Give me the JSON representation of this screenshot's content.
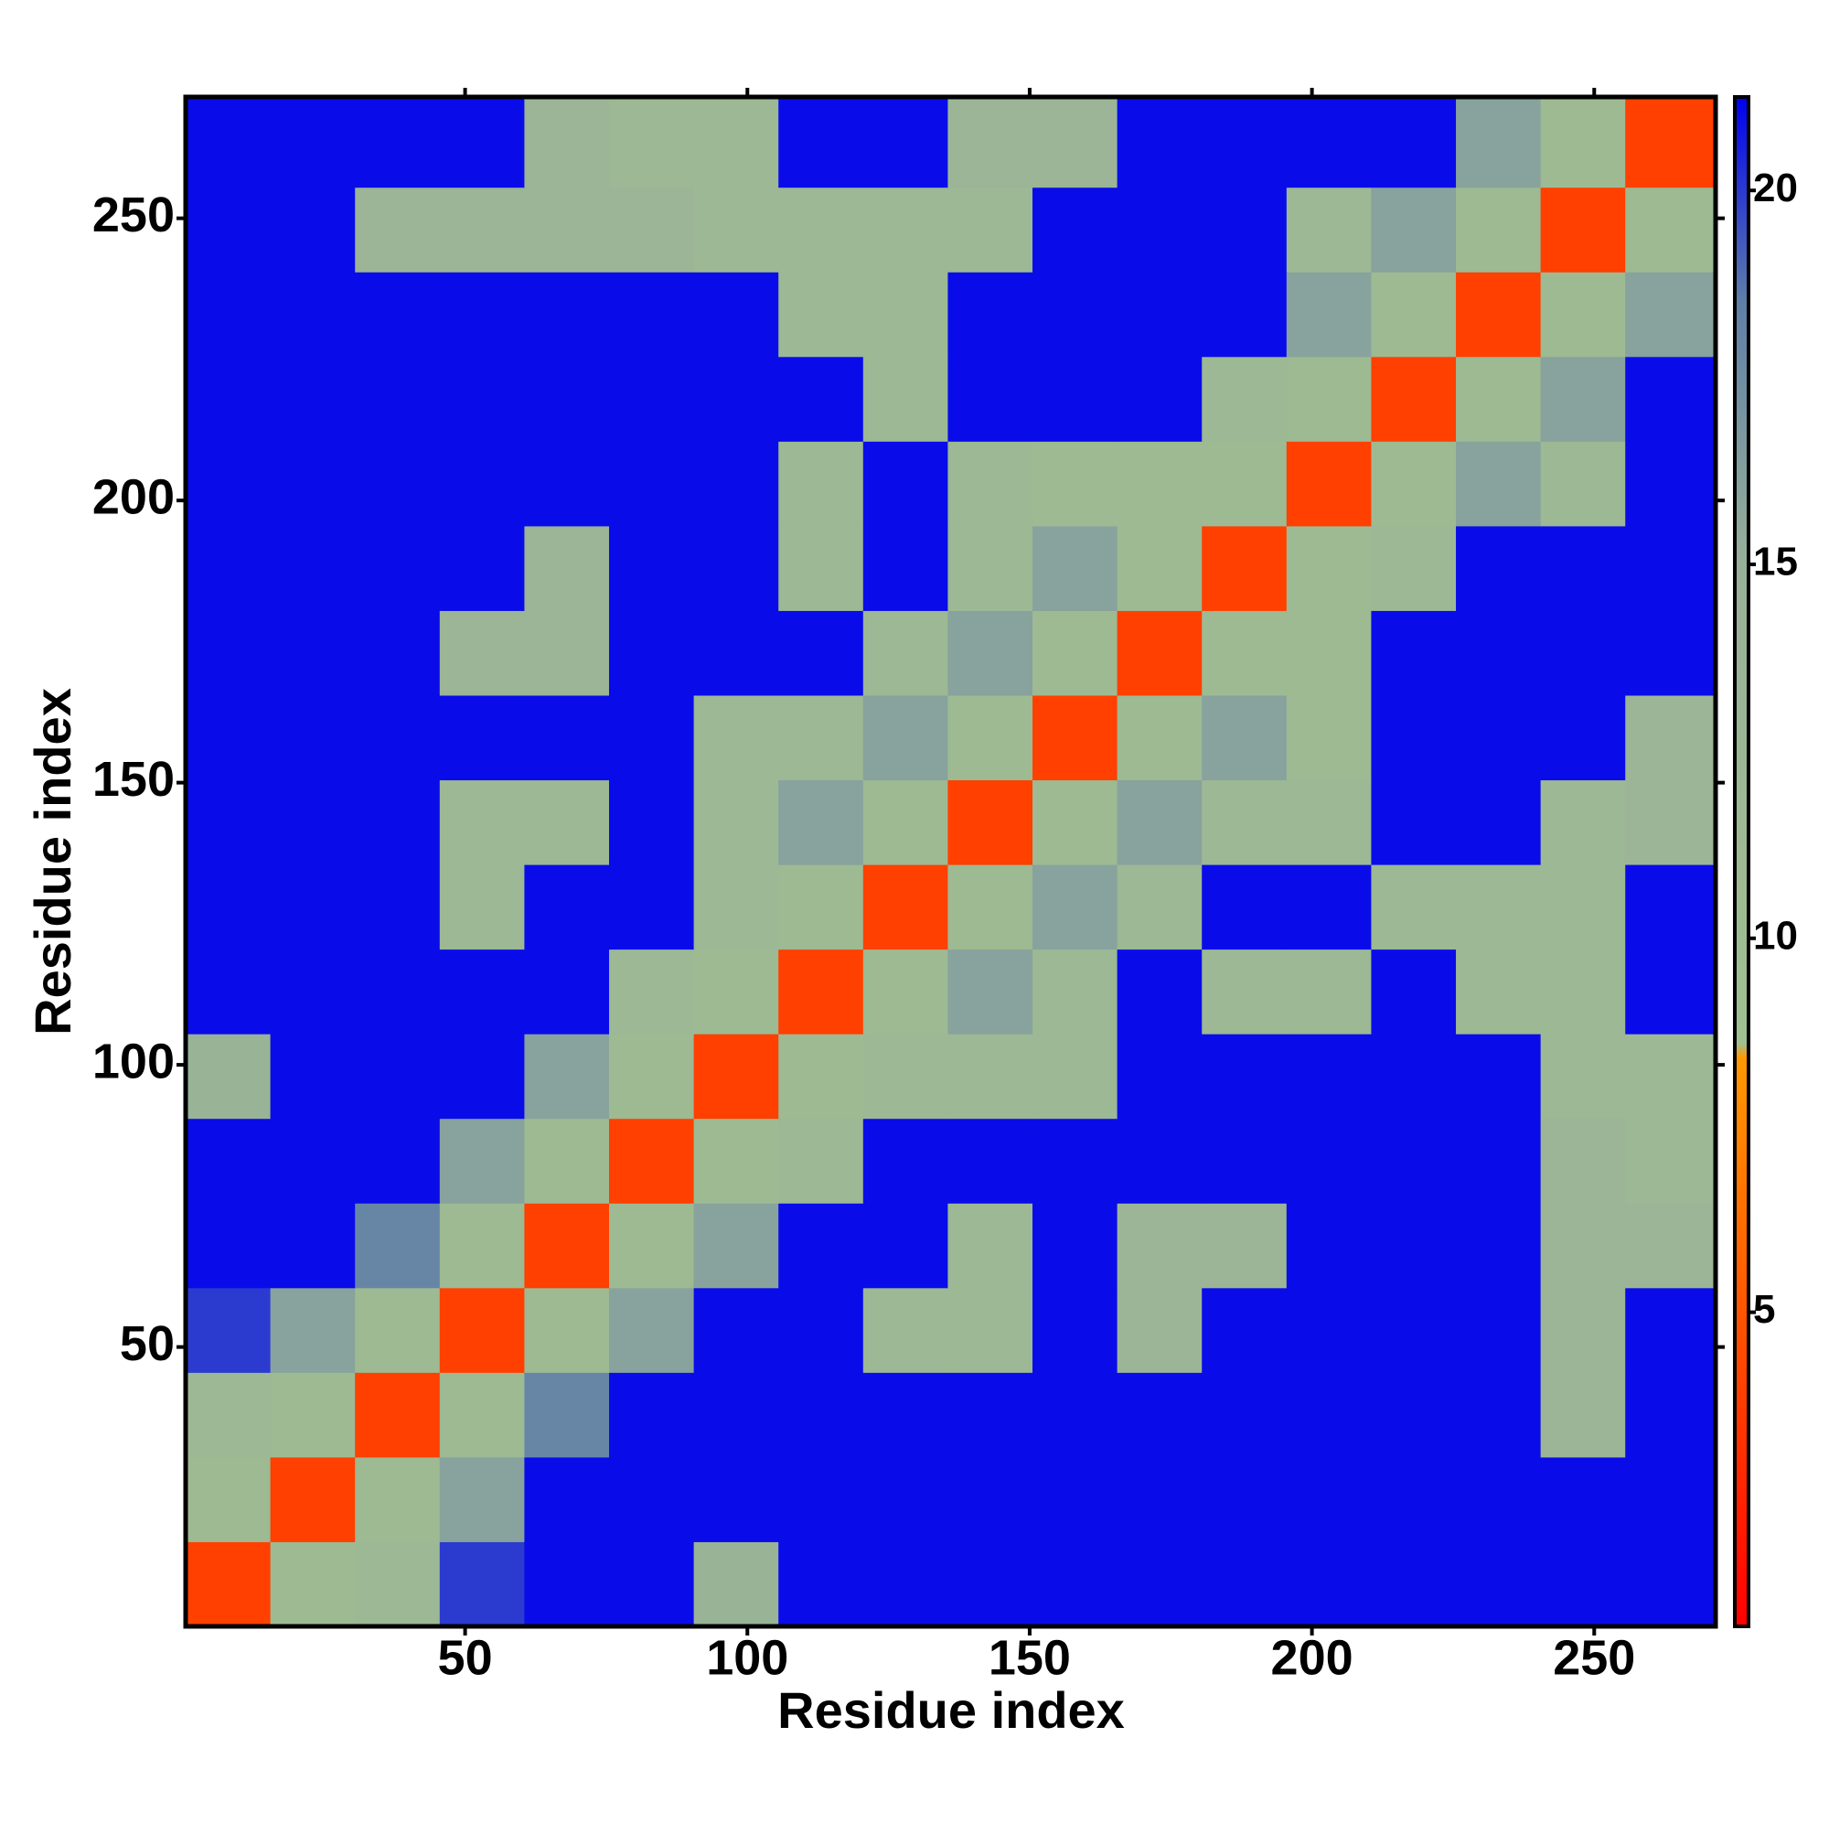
{
  "chart_data": {
    "type": "heatmap",
    "x_label": "Residue index",
    "y_label": "Residue index",
    "bins": [
      0.5,
      15.5,
      30.5,
      45.5,
      60.5,
      75.5,
      90.5,
      105.5,
      120.5,
      135.5,
      150.5,
      165.5,
      180.5,
      195.5,
      210.5,
      225.5,
      240.5,
      255.5,
      271.5
    ],
    "values": [
      [
        4,
        11,
        12,
        20,
        21,
        21,
        14,
        21,
        21,
        21,
        21,
        21,
        21,
        21,
        21,
        21,
        21,
        21
      ],
      [
        11,
        4,
        11,
        16,
        21,
        21,
        21,
        21,
        21,
        21,
        21,
        21,
        21,
        21,
        21,
        21,
        21,
        21
      ],
      [
        12,
        11,
        4,
        11,
        18,
        21,
        21,
        21,
        21,
        21,
        21,
        21,
        21,
        21,
        21,
        21,
        13,
        21
      ],
      [
        20,
        16,
        11,
        4,
        11,
        16,
        21,
        21,
        12,
        12,
        21,
        13,
        21,
        21,
        21,
        21,
        13,
        21
      ],
      [
        21,
        21,
        18,
        11,
        4,
        11,
        16,
        21,
        21,
        12,
        21,
        13,
        13,
        21,
        21,
        21,
        13,
        13
      ],
      [
        21,
        21,
        21,
        16,
        11,
        4,
        11,
        12,
        21,
        21,
        21,
        21,
        21,
        21,
        21,
        21,
        13,
        12
      ],
      [
        14,
        21,
        21,
        21,
        16,
        11,
        4,
        11,
        12,
        12,
        12,
        21,
        21,
        21,
        21,
        21,
        12,
        12
      ],
      [
        21,
        21,
        21,
        21,
        21,
        12,
        11,
        4,
        11,
        16,
        12,
        21,
        12,
        12,
        21,
        12,
        12,
        21
      ],
      [
        21,
        21,
        21,
        12,
        21,
        21,
        12,
        11,
        4,
        11,
        16,
        12,
        21,
        21,
        12,
        12,
        12,
        21
      ],
      [
        21,
        21,
        21,
        12,
        12,
        21,
        12,
        16,
        11,
        4,
        11,
        16,
        12,
        12,
        21,
        21,
        12,
        13
      ],
      [
        21,
        21,
        21,
        21,
        21,
        21,
        12,
        12,
        16,
        11,
        4,
        11,
        16,
        11,
        21,
        21,
        21,
        13
      ],
      [
        21,
        21,
        21,
        13,
        13,
        21,
        21,
        21,
        12,
        16,
        11,
        4,
        11,
        11,
        21,
        21,
        21,
        21
      ],
      [
        21,
        21,
        21,
        21,
        13,
        21,
        21,
        12,
        21,
        12,
        16,
        11,
        4,
        11,
        12,
        21,
        21,
        21
      ],
      [
        21,
        21,
        21,
        21,
        21,
        21,
        21,
        12,
        21,
        12,
        11,
        11,
        11,
        4,
        11,
        16,
        12,
        21
      ],
      [
        21,
        21,
        21,
        21,
        21,
        21,
        21,
        21,
        12,
        21,
        21,
        21,
        12,
        11,
        4,
        11,
        16,
        21
      ],
      [
        21,
        21,
        21,
        21,
        21,
        21,
        21,
        12,
        12,
        21,
        21,
        21,
        21,
        16,
        11,
        4,
        11,
        16
      ],
      [
        21,
        21,
        13,
        13,
        13,
        13,
        12,
        12,
        12,
        12,
        21,
        21,
        21,
        12,
        16,
        11,
        4,
        11
      ],
      [
        21,
        21,
        21,
        21,
        13,
        12,
        12,
        21,
        21,
        13,
        13,
        21,
        21,
        21,
        21,
        16,
        11,
        4
      ]
    ],
    "xlim": [
      0.5,
      271.5
    ],
    "ylim": [
      0.5,
      271.5
    ],
    "xticks": [
      50,
      100,
      150,
      200,
      250
    ],
    "yticks": [
      50,
      100,
      150,
      200,
      250
    ],
    "clim": [
      0.8,
      21.25
    ],
    "cticks": [
      5,
      10,
      15,
      20
    ],
    "colorscale": [
      [
        0.8,
        "#ff0000"
      ],
      [
        8.4,
        "#ff9900"
      ],
      [
        8.6,
        "#a0c090"
      ],
      [
        15,
        "#98b098"
      ],
      [
        18.5,
        "#5f7fa8"
      ],
      [
        21.25,
        "#0000f0"
      ]
    ]
  }
}
